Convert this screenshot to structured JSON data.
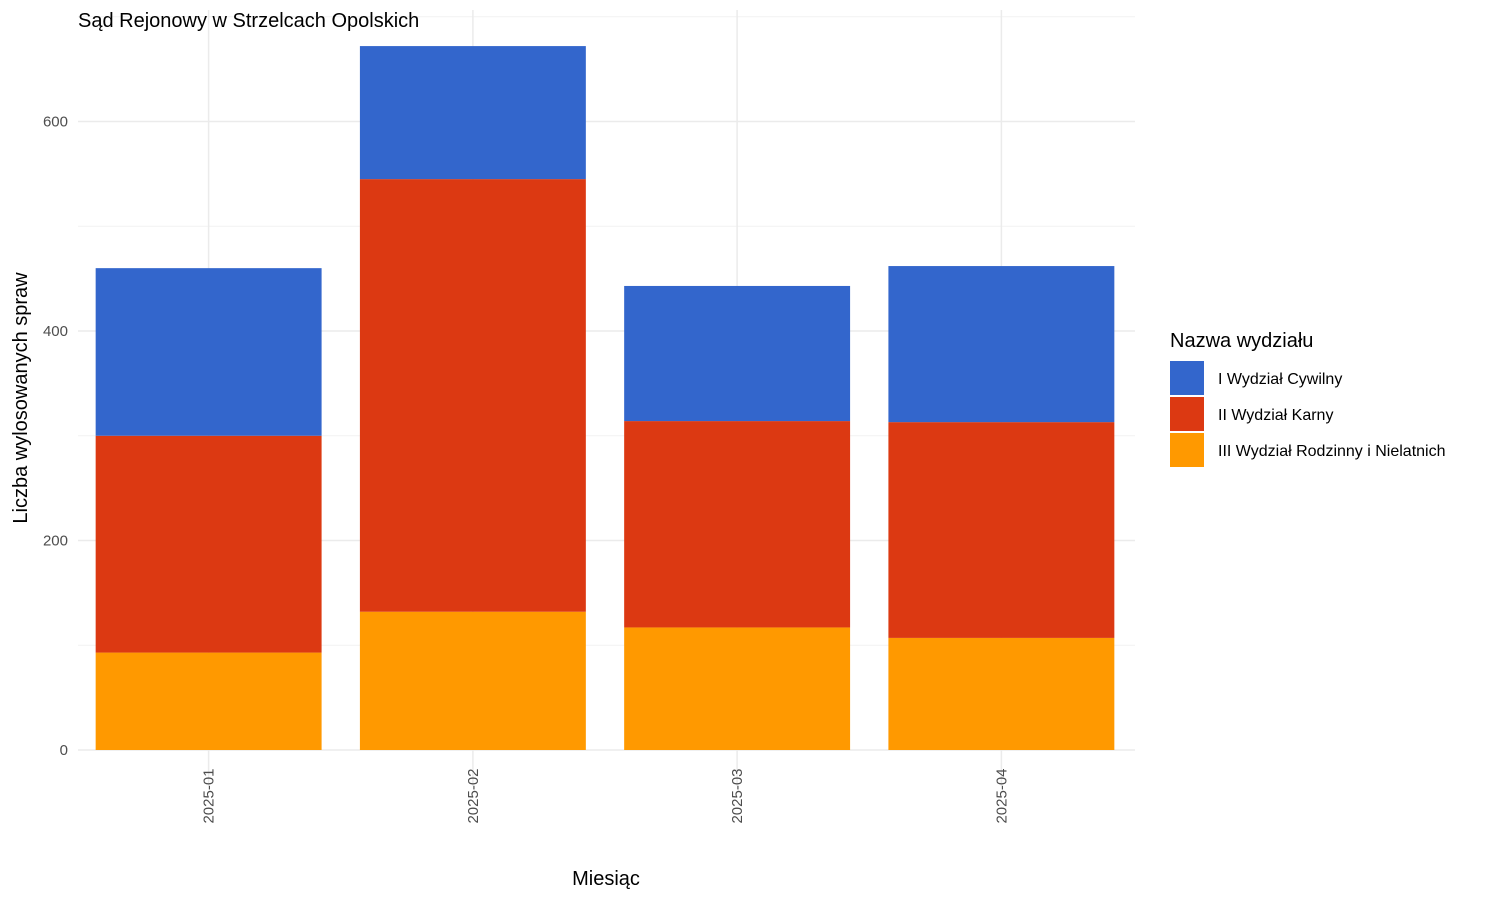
{
  "chart_data": {
    "type": "bar",
    "stacked": true,
    "title": "Sąd Rejonowy w Strzelcach Opolskich",
    "xlabel": "Miesiąc",
    "ylabel": "Liczba wylosowanych spraw",
    "categories": [
      "2025-01",
      "2025-02",
      "2025-03",
      "2025-04"
    ],
    "ylim": [
      0,
      700
    ],
    "yticks": [
      0,
      200,
      400,
      600
    ],
    "grid": true,
    "legend": {
      "title": "Nazwa wydziału",
      "position": "right"
    },
    "series": [
      {
        "name": "III Wydział Rodzinny i Nielatnich",
        "color": "#FF9900",
        "values": [
          93,
          132,
          117,
          107
        ]
      },
      {
        "name": "II Wydział Karny",
        "color": "#DC3912",
        "values": [
          207,
          413,
          197,
          206
        ]
      },
      {
        "name": "I Wydział Cywilny",
        "color": "#3366CC",
        "values": [
          160,
          127,
          129,
          149
        ]
      }
    ]
  }
}
